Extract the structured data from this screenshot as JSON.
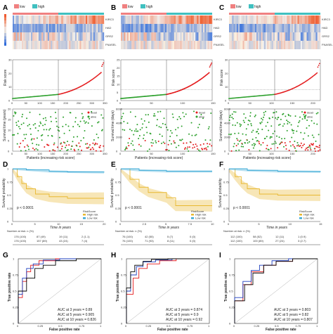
{
  "panels": [
    {
      "label": "A",
      "legend_low": "low",
      "legend_high": "high",
      "genes": [
        "KIRC3",
        "HAD",
        "GRS2",
        "FNASEL"
      ]
    },
    {
      "label": "B",
      "legend_low": "low",
      "legend_high": "high",
      "genes": [
        "KIRC3",
        "HAD",
        "GRS2",
        "FNASEL"
      ]
    },
    {
      "label": "C",
      "legend_low": "low",
      "legend_high": "high",
      "genes": [
        "KIRC3",
        "HAD",
        "GRS2",
        "FNASEL"
      ]
    }
  ],
  "survival_panels": [
    {
      "label": "D",
      "pvalue": "p < 0.0001",
      "xlabel": "Time in years",
      "ylabel": "Survival probability",
      "legend_title": "RiskScore",
      "legend_items": [
        "High risk",
        "Low risk"
      ],
      "n_at_risk_title": "Number at risk: n (%)",
      "n_at_risk": [
        [
          "176 (100)",
          "87 (49)",
          "19 (11)",
          "2 (1.1)"
        ],
        [
          "176 (100)",
          "157 (89)",
          "43 (24)",
          "7 (4)"
        ]
      ]
    },
    {
      "label": "E",
      "pvalue": "p < 0.0001",
      "xlabel": "Time in years",
      "ylabel": "Survival probability",
      "legend_title": "RiskScore",
      "legend_items": [
        "High risk",
        "Low risk"
      ],
      "n_at_risk_title": "Number at risk: n (%)",
      "n_at_risk": [
        [
          "76 (100)",
          "42 (55)",
          "5 (7)",
          "0 (0)"
        ],
        [
          "76 (100)",
          "71 (93)",
          "8 (11)",
          "0 (0)"
        ]
      ]
    },
    {
      "label": "F",
      "pvalue": "p < 0.0001",
      "xlabel": "Time in years",
      "ylabel": "Survival probability",
      "legend_title": "RiskScore",
      "legend_items": [
        "High risk",
        "Low risk"
      ],
      "n_at_risk_title": "Number at risk: n (%)",
      "n_at_risk": [
        [
          "112 (100)",
          "58 (52)",
          "12 (11)",
          "1 (0.9)"
        ],
        [
          "112 (100)",
          "100 (89)",
          "27 (24)",
          "3 (2.7)"
        ]
      ]
    }
  ],
  "roc_panels": [
    {
      "label": "G",
      "xlabel": "False positive rate",
      "ylabel": "True positive rate",
      "auc": [
        "AUC at 3 years = 0.89",
        "AUC at 5 years = 0.905",
        "AUC at 10 years = 0.826"
      ]
    },
    {
      "label": "H",
      "xlabel": "False positive rate",
      "ylabel": "True positive rate",
      "auc": [
        "AUC at 3 years = 0.874",
        "AUC at 5 years = 0.9",
        "AUC at 10 years = 0.92"
      ]
    },
    {
      "label": "I",
      "xlabel": "False positive rate",
      "ylabel": "True positive rate",
      "auc": [
        "AUC at 3 years = 0.803",
        "AUC at 5 years = 0.82",
        "AUC at 10 years = 0.807"
      ]
    }
  ],
  "colors": {
    "dead": "#e41a1c",
    "alive": "#2ca02c",
    "low": "#f08080",
    "high": "#40c0c0",
    "roc3": "#e41a1c",
    "roc5": "#1f3fbf",
    "roc10": "#000000",
    "km_high": "#e8b830",
    "km_low": "#3aa9d6"
  },
  "chart_data": [
    {
      "type": "heatmap",
      "panel": "A",
      "rows": [
        "KIRC3",
        "HAD",
        "GRS2",
        "FNASEL"
      ]
    },
    {
      "type": "scatter",
      "panel": "A",
      "ylabel": "Risk score",
      "xlabel": "",
      "x_range": [
        0,
        350
      ],
      "y_range": [
        0,
        30
      ],
      "xticks": [
        0,
        50,
        100,
        150,
        200,
        250,
        300,
        350
      ],
      "yticks": [
        0,
        10,
        20,
        30
      ],
      "n": 350,
      "cutoff": 175,
      "series": [
        {
          "name": "",
          "y_start": 1,
          "y_mid": 4,
          "y_end": 29
        }
      ]
    },
    {
      "type": "scatter",
      "panel": "A",
      "ylabel": "Survival time (years)",
      "xlabel": "Patients (increasing risk score)",
      "x_range": [
        0,
        350
      ],
      "y_range": [
        0,
        20
      ],
      "xticks": [
        0,
        50,
        100,
        150,
        200,
        250,
        300,
        350
      ],
      "yticks": [
        0,
        5,
        10,
        15,
        20
      ],
      "legend": [
        "dead",
        "alive"
      ]
    },
    {
      "type": "heatmap",
      "panel": "B",
      "rows": [
        "KIRC3",
        "HAD",
        "GRS2",
        "FNASEL"
      ]
    },
    {
      "type": "scatter",
      "panel": "B",
      "ylabel": "Risk score",
      "xlabel": "",
      "x_range": [
        0,
        150
      ],
      "y_range": [
        0,
        25
      ],
      "xticks": [
        0,
        50,
        100,
        150
      ],
      "yticks": [
        0,
        5,
        10,
        15,
        20,
        25
      ],
      "n": 150,
      "cutoff": 75
    },
    {
      "type": "scatter",
      "panel": "B",
      "ylabel": "Survival time (days)",
      "xlabel": "Patients (increasing risk score)",
      "x_range": [
        0,
        150
      ],
      "y_range": [
        0,
        6000
      ],
      "xticks": [
        0,
        50,
        100,
        150
      ],
      "yticks": [
        0,
        2000,
        4000,
        6000
      ],
      "legend": [
        "dead",
        "alive"
      ]
    },
    {
      "type": "heatmap",
      "panel": "C",
      "rows": [
        "KIRC3",
        "HAD",
        "GRS2",
        "FNASEL"
      ]
    },
    {
      "type": "scatter",
      "panel": "C",
      "ylabel": "Risk score",
      "xlabel": "",
      "x_range": [
        0,
        220
      ],
      "y_range": [
        0,
        30
      ],
      "xticks": [
        0,
        50,
        100,
        150,
        200
      ],
      "yticks": [
        0,
        10,
        20,
        30
      ],
      "n": 220,
      "cutoff": 110
    },
    {
      "type": "scatter",
      "panel": "C",
      "ylabel": "Survival time (days)",
      "xlabel": "Patients (increasing risk score)",
      "x_range": [
        0,
        220
      ],
      "y_range": [
        0,
        6000
      ],
      "xticks": [
        0,
        50,
        100,
        150,
        200
      ],
      "yticks": [
        0,
        2000,
        4000,
        6000
      ],
      "legend": [
        "dead",
        "alive"
      ]
    },
    {
      "type": "line",
      "panel": "D",
      "x_range": [
        0,
        20
      ],
      "y_range": [
        0,
        1
      ],
      "xticks": [
        0,
        5,
        10,
        15,
        20
      ],
      "yticks": [
        0,
        0.25,
        0.5,
        0.75,
        1
      ],
      "series": [
        {
          "name": "High risk",
          "x": [
            0,
            1,
            2,
            3,
            5,
            8,
            12,
            20
          ],
          "y": [
            1,
            0.85,
            0.72,
            0.62,
            0.52,
            0.47,
            0.44,
            0.44
          ]
        },
        {
          "name": "Low risk",
          "x": [
            0,
            3,
            8,
            12,
            20
          ],
          "y": [
            1,
            0.98,
            0.95,
            0.94,
            0.93
          ]
        }
      ]
    },
    {
      "type": "line",
      "panel": "E",
      "x_range": [
        0,
        10
      ],
      "y_range": [
        0,
        1
      ],
      "xticks": [
        0,
        2.5,
        5,
        7.5,
        10
      ],
      "yticks": [
        0,
        0.25,
        0.5,
        0.75,
        1
      ],
      "series": [
        {
          "name": "High risk",
          "x": [
            0,
            1,
            2,
            3,
            5,
            6,
            10
          ],
          "y": [
            1,
            0.8,
            0.65,
            0.55,
            0.45,
            0.3,
            0.3
          ]
        },
        {
          "name": "Low risk",
          "x": [
            0,
            2,
            5,
            10
          ],
          "y": [
            1,
            0.97,
            0.95,
            0.95
          ]
        }
      ]
    },
    {
      "type": "line",
      "panel": "F",
      "x_range": [
        0,
        15
      ],
      "y_range": [
        0,
        1
      ],
      "xticks": [
        0,
        5,
        10,
        15
      ],
      "yticks": [
        0,
        0.25,
        0.5,
        0.75,
        1
      ],
      "series": [
        {
          "name": "High risk",
          "x": [
            0,
            1,
            2,
            3,
            5,
            8,
            15
          ],
          "y": [
            1,
            0.85,
            0.72,
            0.62,
            0.52,
            0.5,
            0.5
          ]
        },
        {
          "name": "Low risk",
          "x": [
            0,
            3,
            8,
            15
          ],
          "y": [
            1,
            0.97,
            0.95,
            0.94
          ]
        }
      ]
    },
    {
      "type": "line",
      "panel": "G",
      "x_range": [
        0,
        1
      ],
      "y_range": [
        0,
        1
      ],
      "xticks": [
        0,
        0.25,
        0.5,
        0.75,
        1
      ],
      "yticks": [
        0,
        0.25,
        0.5,
        0.75,
        1
      ],
      "series": [
        {
          "name": "AUC at 3 years = 0.89",
          "x": [
            0,
            0.05,
            0.1,
            0.15,
            0.25,
            0.45,
            1
          ],
          "y": [
            0,
            0.4,
            0.65,
            0.8,
            0.9,
            0.97,
            1
          ]
        },
        {
          "name": "AUC at 5 years = 0.905",
          "x": [
            0,
            0.05,
            0.1,
            0.18,
            0.3,
            0.5,
            1
          ],
          "y": [
            0,
            0.45,
            0.7,
            0.85,
            0.92,
            0.98,
            1
          ]
        },
        {
          "name": "AUC at 10 years = 0.826",
          "x": [
            0,
            0.1,
            0.2,
            0.3,
            0.45,
            0.7,
            1
          ],
          "y": [
            0,
            0.5,
            0.7,
            0.85,
            0.9,
            0.97,
            1
          ]
        }
      ]
    },
    {
      "type": "line",
      "panel": "H",
      "x_range": [
        0,
        1
      ],
      "y_range": [
        0,
        1
      ],
      "xticks": [
        0,
        0.25,
        0.5,
        0.75,
        1
      ],
      "yticks": [
        0,
        0.25,
        0.5,
        0.75,
        1
      ],
      "series": [
        {
          "name": "AUC at 3 years = 0.874",
          "x": [
            0,
            0.08,
            0.15,
            0.25,
            0.4,
            0.6,
            1
          ],
          "y": [
            0,
            0.45,
            0.7,
            0.85,
            0.92,
            0.97,
            1
          ]
        },
        {
          "name": "AUC at 5 years = 0.9",
          "x": [
            0,
            0.05,
            0.12,
            0.2,
            0.35,
            0.55,
            1
          ],
          "y": [
            0,
            0.5,
            0.75,
            0.88,
            0.95,
            0.98,
            1
          ]
        },
        {
          "name": "AUC at 10 years = 0.92",
          "x": [
            0,
            0.05,
            0.1,
            0.2,
            0.3,
            0.5,
            1
          ],
          "y": [
            0,
            0.55,
            0.8,
            0.9,
            0.96,
            0.99,
            1
          ]
        }
      ]
    },
    {
      "type": "line",
      "panel": "I",
      "x_range": [
        0,
        1
      ],
      "y_range": [
        0,
        1
      ],
      "xticks": [
        0,
        0.25,
        0.5,
        0.75,
        1
      ],
      "yticks": [
        0,
        0.25,
        0.5,
        0.75,
        1
      ],
      "series": [
        {
          "name": "AUC at 3 years = 0.803",
          "x": [
            0,
            0.1,
            0.2,
            0.35,
            0.5,
            0.7,
            1
          ],
          "y": [
            0,
            0.35,
            0.6,
            0.8,
            0.9,
            0.96,
            1
          ]
        },
        {
          "name": "AUC at 5 years = 0.82",
          "x": [
            0,
            0.1,
            0.2,
            0.3,
            0.45,
            0.65,
            1
          ],
          "y": [
            0,
            0.4,
            0.65,
            0.82,
            0.9,
            0.97,
            1
          ]
        },
        {
          "name": "AUC at 10 years = 0.807",
          "x": [
            0,
            0.12,
            0.22,
            0.35,
            0.5,
            0.7,
            1
          ],
          "y": [
            0,
            0.35,
            0.6,
            0.78,
            0.9,
            0.96,
            1
          ]
        }
      ]
    }
  ]
}
